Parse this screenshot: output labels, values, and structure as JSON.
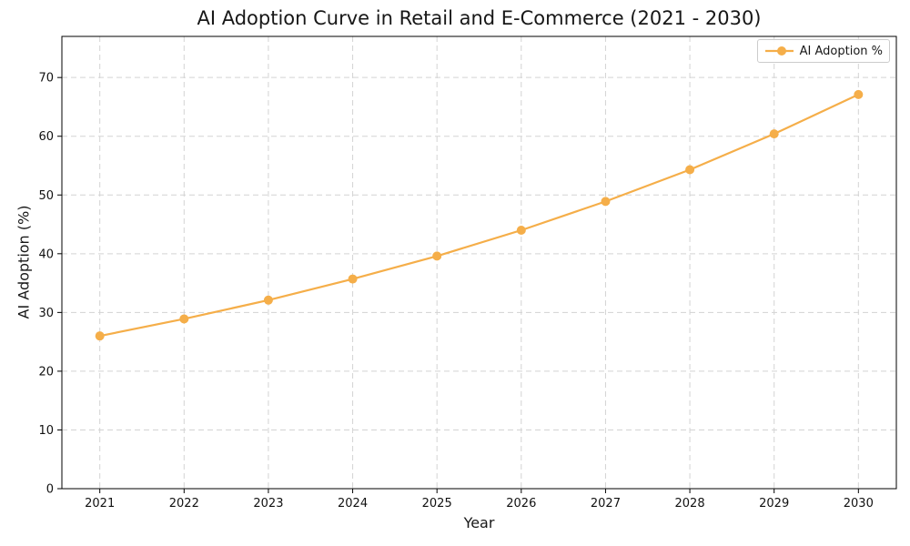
{
  "chart_data": {
    "type": "line",
    "title": "AI Adoption Curve in Retail and E-Commerce (2021 - 2030)",
    "xlabel": "Year",
    "ylabel": "AI Adoption (%)",
    "x": [
      2021,
      2022,
      2023,
      2024,
      2025,
      2026,
      2027,
      2028,
      2029,
      2030
    ],
    "series": [
      {
        "name": "AI Adoption %",
        "values": [
          26.0,
          28.9,
          32.1,
          35.7,
          39.6,
          44.0,
          48.9,
          54.3,
          60.4,
          67.1
        ],
        "color": "#F5AE49",
        "marker": "circle"
      }
    ],
    "ylim": [
      0,
      77
    ],
    "yticks": [
      0,
      10,
      20,
      30,
      40,
      50,
      60,
      70
    ],
    "grid": true,
    "grid_style": "dashed",
    "grid_color": "#d3d3d3",
    "legend_position": "upper right",
    "background": "#ffffff",
    "text_color": "#111111"
  }
}
